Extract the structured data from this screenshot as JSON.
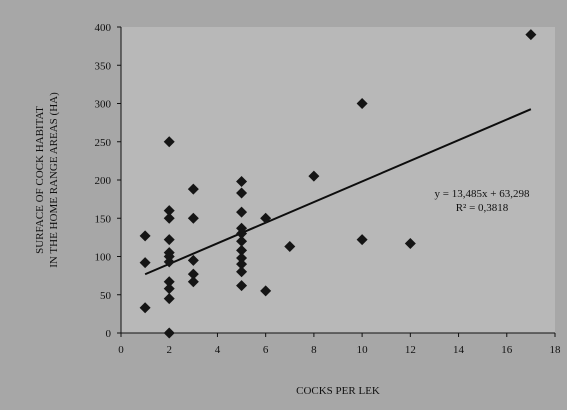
{
  "chart_data": {
    "type": "scatter",
    "title": "",
    "xlabel": "COCKS PER LEK",
    "ylabel_line1": "SURFACE OF COCK HABITAT",
    "ylabel_line2": "IN THE HOME RANGE AREAS (HA)",
    "xlim": [
      0,
      18
    ],
    "ylim": [
      0,
      400
    ],
    "xticks": [
      0,
      2,
      4,
      6,
      8,
      10,
      12,
      14,
      16,
      18
    ],
    "yticks": [
      0,
      50,
      100,
      150,
      200,
      250,
      300,
      350,
      400
    ],
    "grid": false,
    "points": [
      {
        "x": 1,
        "y": 127
      },
      {
        "x": 1,
        "y": 92
      },
      {
        "x": 1,
        "y": 33
      },
      {
        "x": 2,
        "y": 250
      },
      {
        "x": 2,
        "y": 160
      },
      {
        "x": 2,
        "y": 150
      },
      {
        "x": 2,
        "y": 122
      },
      {
        "x": 2,
        "y": 105
      },
      {
        "x": 2,
        "y": 100
      },
      {
        "x": 2,
        "y": 93
      },
      {
        "x": 2,
        "y": 67
      },
      {
        "x": 2,
        "y": 58
      },
      {
        "x": 2,
        "y": 45
      },
      {
        "x": 2,
        "y": 0
      },
      {
        "x": 3,
        "y": 188
      },
      {
        "x": 3,
        "y": 150
      },
      {
        "x": 3,
        "y": 95
      },
      {
        "x": 3,
        "y": 77
      },
      {
        "x": 3,
        "y": 67
      },
      {
        "x": 5,
        "y": 198
      },
      {
        "x": 5,
        "y": 183
      },
      {
        "x": 5,
        "y": 158
      },
      {
        "x": 5,
        "y": 137
      },
      {
        "x": 5,
        "y": 130
      },
      {
        "x": 5,
        "y": 120
      },
      {
        "x": 5,
        "y": 108
      },
      {
        "x": 5,
        "y": 98
      },
      {
        "x": 5,
        "y": 90
      },
      {
        "x": 5,
        "y": 80
      },
      {
        "x": 5,
        "y": 62
      },
      {
        "x": 6,
        "y": 150
      },
      {
        "x": 6,
        "y": 55
      },
      {
        "x": 7,
        "y": 113
      },
      {
        "x": 8,
        "y": 205
      },
      {
        "x": 10,
        "y": 300
      },
      {
        "x": 10,
        "y": 122
      },
      {
        "x": 12,
        "y": 117
      },
      {
        "x": 17,
        "y": 390
      }
    ],
    "trendline": {
      "slope": 13.485,
      "intercept": 63.298,
      "x_range": [
        1,
        17
      ],
      "equation_label": "y = 13,485x + 63,298",
      "r2_label": "R² = 0,3818"
    },
    "colors": {
      "marker": "#151515",
      "line": "#0d0d0d",
      "plot_bg": "#b8b8b8",
      "page_bg": "#a7a7a7"
    }
  }
}
